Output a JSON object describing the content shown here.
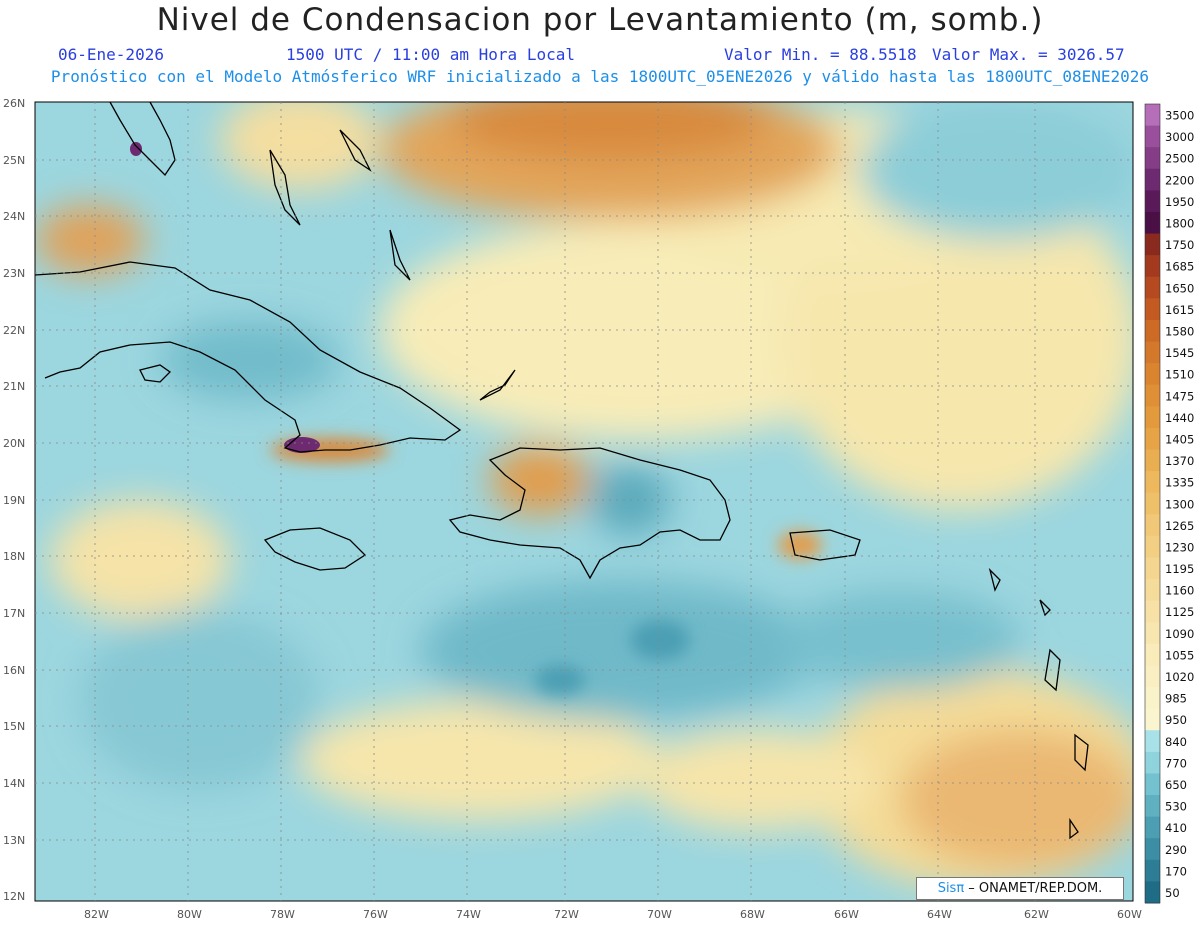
{
  "header": {
    "title": "Nivel de Condensacion por Levantamiento (m, somb.)",
    "date": "06-Ene-2026",
    "time": "1500 UTC / 11:00 am Hora Local",
    "value_min": "Valor Min. = 88.5518",
    "value_max": "Valor Max. = 3026.57",
    "description": "Pronóstico con el Modelo Atmósferico WRF inicializado a las 1800UTC_05ENE2026 y válido hasta las  1800UTC_08ENE2026"
  },
  "map": {
    "lat_labels": [
      "26N",
      "25N",
      "24N",
      "23N",
      "22N",
      "21N",
      "20N",
      "19N",
      "18N",
      "17N",
      "16N",
      "15N",
      "14N",
      "13N",
      "12N"
    ],
    "lon_labels": [
      "82W",
      "80W",
      "78W",
      "76W",
      "74W",
      "72W",
      "70W",
      "68W",
      "66W",
      "64W",
      "62W",
      "60W"
    ]
  },
  "colorbar": {
    "labels": [
      "3500",
      "3000",
      "2500",
      "2200",
      "1950",
      "1800",
      "1750",
      "1685",
      "1650",
      "1615",
      "1580",
      "1545",
      "1510",
      "1475",
      "1440",
      "1405",
      "1370",
      "1335",
      "1300",
      "1265",
      "1230",
      "1195",
      "1160",
      "1125",
      "1090",
      "1055",
      "1020",
      "985",
      "950",
      "840",
      "770",
      "650",
      "530",
      "410",
      "290",
      "170",
      "50"
    ],
    "colors": [
      "#b46fb8",
      "#9a4f9d",
      "#843d86",
      "#6d2a70",
      "#5a1a5a",
      "#4a0f45",
      "#8a2a1e",
      "#a33a1f",
      "#b54a20",
      "#c25a22",
      "#cd6a26",
      "#d4782b",
      "#da8430",
      "#df9036",
      "#e39a3d",
      "#e7a447",
      "#eaae52",
      "#edb85e",
      "#efc06a",
      "#f1c877",
      "#f3cf84",
      "#f5d690",
      "#f6dc9b",
      "#f7e1a6",
      "#f8e6b0",
      "#f9ebba",
      "#f9efc2",
      "#faf2c9",
      "#fbf5cf",
      "#a8e2e8",
      "#8fd3dd",
      "#74c1cf",
      "#5fb0c1",
      "#4c9fb3",
      "#3b8ea4",
      "#2c7d95",
      "#1f6c86"
    ]
  },
  "credit": {
    "sis": "Sisπ",
    "org": " – ONAMET/REP.DOM."
  }
}
